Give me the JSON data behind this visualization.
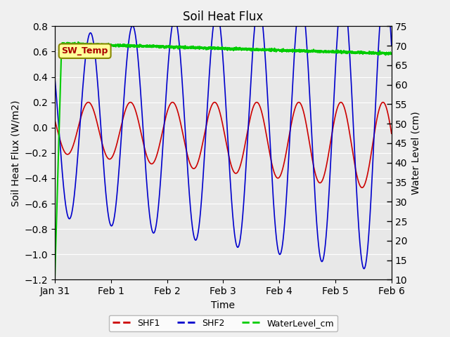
{
  "title": "Soil Heat Flux",
  "xlabel": "Time",
  "ylabel_left": "Soil Heat Flux (W/m2)",
  "ylabel_right": "Water Level (cm)",
  "ylim_left": [
    -1.2,
    0.8
  ],
  "ylim_right": [
    10,
    75
  ],
  "yticks_left": [
    -1.2,
    -1.0,
    -0.8,
    -0.6,
    -0.4,
    -0.2,
    0.0,
    0.2,
    0.4,
    0.6,
    0.8
  ],
  "yticks_right": [
    10,
    15,
    20,
    25,
    30,
    35,
    40,
    45,
    50,
    55,
    60,
    65,
    70,
    75
  ],
  "fig_bg_color": "#f0f0f0",
  "plot_bg_color": "#e8e8e8",
  "shf1_color": "#cc0000",
  "shf2_color": "#0000cc",
  "water_color": "#00cc00",
  "annotation_text": "SW_Temp",
  "annotation_color": "#aa0000",
  "annotation_bg": "#ffff99",
  "annotation_border": "#888800",
  "grid_color": "#ffffff",
  "xtick_labels": [
    "Jan 31",
    "Feb 1",
    "Feb 2",
    "Feb 3",
    "Feb 4",
    "Feb 5",
    "Feb 6"
  ],
  "xtick_hours": [
    0,
    24,
    48,
    72,
    96,
    120,
    144
  ]
}
